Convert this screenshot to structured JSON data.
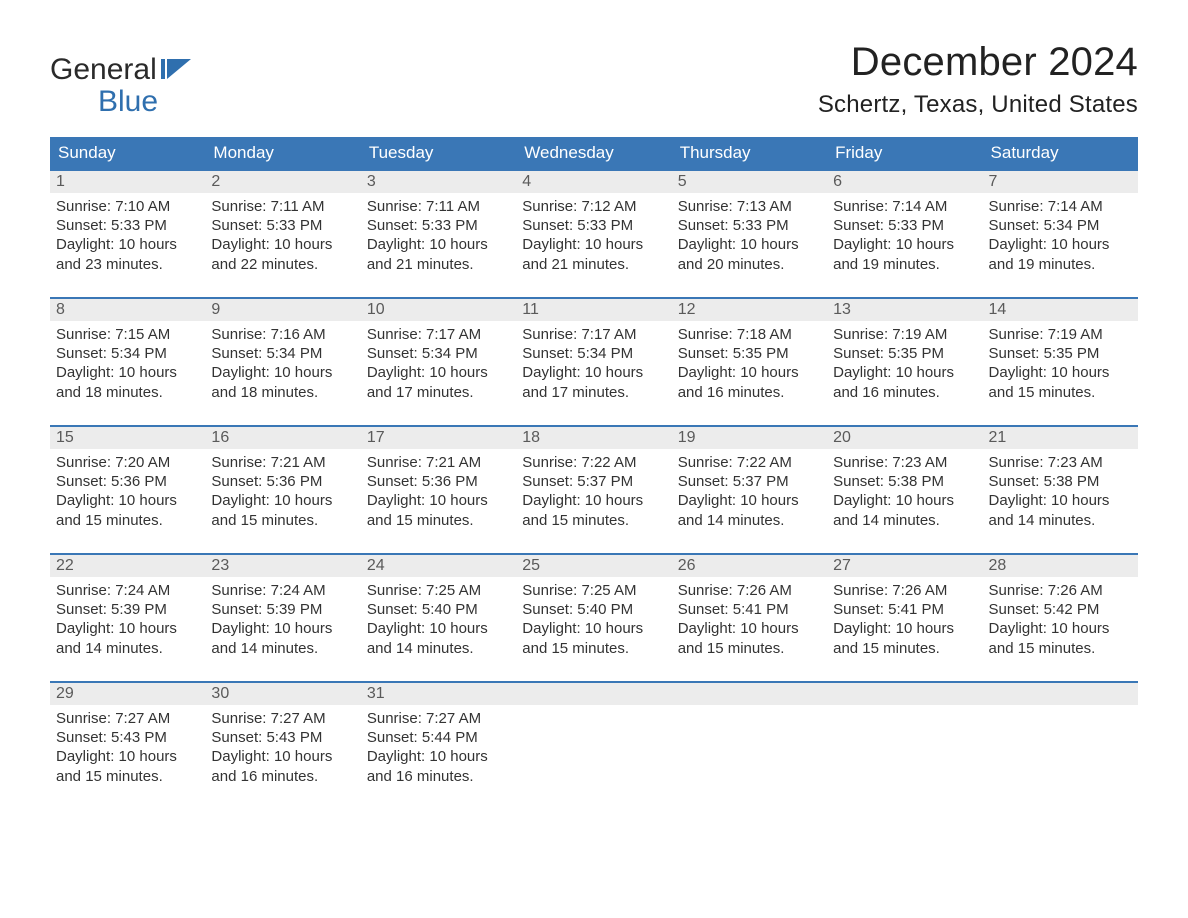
{
  "brand": {
    "word1": "General",
    "word2": "Blue",
    "flag_color": "#2f6fae"
  },
  "header": {
    "month_title": "December 2024",
    "location": "Schertz, Texas, United States"
  },
  "colors": {
    "header_bg": "#3a77b6",
    "header_text": "#ffffff",
    "daynum_bg": "#ececec",
    "row_border": "#3a77b6",
    "body_text": "#333333",
    "page_bg": "#ffffff"
  },
  "typography": {
    "month_title_fontsize": 40,
    "location_fontsize": 24,
    "dayheader_fontsize": 17,
    "daynum_fontsize": 16,
    "body_fontsize": 15
  },
  "columns": [
    "Sunday",
    "Monday",
    "Tuesday",
    "Wednesday",
    "Thursday",
    "Friday",
    "Saturday"
  ],
  "weeks": [
    [
      {
        "day": "1",
        "sunrise": "Sunrise: 7:10 AM",
        "sunset": "Sunset: 5:33 PM",
        "daylight1": "Daylight: 10 hours",
        "daylight2": "and 23 minutes."
      },
      {
        "day": "2",
        "sunrise": "Sunrise: 7:11 AM",
        "sunset": "Sunset: 5:33 PM",
        "daylight1": "Daylight: 10 hours",
        "daylight2": "and 22 minutes."
      },
      {
        "day": "3",
        "sunrise": "Sunrise: 7:11 AM",
        "sunset": "Sunset: 5:33 PM",
        "daylight1": "Daylight: 10 hours",
        "daylight2": "and 21 minutes."
      },
      {
        "day": "4",
        "sunrise": "Sunrise: 7:12 AM",
        "sunset": "Sunset: 5:33 PM",
        "daylight1": "Daylight: 10 hours",
        "daylight2": "and 21 minutes."
      },
      {
        "day": "5",
        "sunrise": "Sunrise: 7:13 AM",
        "sunset": "Sunset: 5:33 PM",
        "daylight1": "Daylight: 10 hours",
        "daylight2": "and 20 minutes."
      },
      {
        "day": "6",
        "sunrise": "Sunrise: 7:14 AM",
        "sunset": "Sunset: 5:33 PM",
        "daylight1": "Daylight: 10 hours",
        "daylight2": "and 19 minutes."
      },
      {
        "day": "7",
        "sunrise": "Sunrise: 7:14 AM",
        "sunset": "Sunset: 5:34 PM",
        "daylight1": "Daylight: 10 hours",
        "daylight2": "and 19 minutes."
      }
    ],
    [
      {
        "day": "8",
        "sunrise": "Sunrise: 7:15 AM",
        "sunset": "Sunset: 5:34 PM",
        "daylight1": "Daylight: 10 hours",
        "daylight2": "and 18 minutes."
      },
      {
        "day": "9",
        "sunrise": "Sunrise: 7:16 AM",
        "sunset": "Sunset: 5:34 PM",
        "daylight1": "Daylight: 10 hours",
        "daylight2": "and 18 minutes."
      },
      {
        "day": "10",
        "sunrise": "Sunrise: 7:17 AM",
        "sunset": "Sunset: 5:34 PM",
        "daylight1": "Daylight: 10 hours",
        "daylight2": "and 17 minutes."
      },
      {
        "day": "11",
        "sunrise": "Sunrise: 7:17 AM",
        "sunset": "Sunset: 5:34 PM",
        "daylight1": "Daylight: 10 hours",
        "daylight2": "and 17 minutes."
      },
      {
        "day": "12",
        "sunrise": "Sunrise: 7:18 AM",
        "sunset": "Sunset: 5:35 PM",
        "daylight1": "Daylight: 10 hours",
        "daylight2": "and 16 minutes."
      },
      {
        "day": "13",
        "sunrise": "Sunrise: 7:19 AM",
        "sunset": "Sunset: 5:35 PM",
        "daylight1": "Daylight: 10 hours",
        "daylight2": "and 16 minutes."
      },
      {
        "day": "14",
        "sunrise": "Sunrise: 7:19 AM",
        "sunset": "Sunset: 5:35 PM",
        "daylight1": "Daylight: 10 hours",
        "daylight2": "and 15 minutes."
      }
    ],
    [
      {
        "day": "15",
        "sunrise": "Sunrise: 7:20 AM",
        "sunset": "Sunset: 5:36 PM",
        "daylight1": "Daylight: 10 hours",
        "daylight2": "and 15 minutes."
      },
      {
        "day": "16",
        "sunrise": "Sunrise: 7:21 AM",
        "sunset": "Sunset: 5:36 PM",
        "daylight1": "Daylight: 10 hours",
        "daylight2": "and 15 minutes."
      },
      {
        "day": "17",
        "sunrise": "Sunrise: 7:21 AM",
        "sunset": "Sunset: 5:36 PM",
        "daylight1": "Daylight: 10 hours",
        "daylight2": "and 15 minutes."
      },
      {
        "day": "18",
        "sunrise": "Sunrise: 7:22 AM",
        "sunset": "Sunset: 5:37 PM",
        "daylight1": "Daylight: 10 hours",
        "daylight2": "and 15 minutes."
      },
      {
        "day": "19",
        "sunrise": "Sunrise: 7:22 AM",
        "sunset": "Sunset: 5:37 PM",
        "daylight1": "Daylight: 10 hours",
        "daylight2": "and 14 minutes."
      },
      {
        "day": "20",
        "sunrise": "Sunrise: 7:23 AM",
        "sunset": "Sunset: 5:38 PM",
        "daylight1": "Daylight: 10 hours",
        "daylight2": "and 14 minutes."
      },
      {
        "day": "21",
        "sunrise": "Sunrise: 7:23 AM",
        "sunset": "Sunset: 5:38 PM",
        "daylight1": "Daylight: 10 hours",
        "daylight2": "and 14 minutes."
      }
    ],
    [
      {
        "day": "22",
        "sunrise": "Sunrise: 7:24 AM",
        "sunset": "Sunset: 5:39 PM",
        "daylight1": "Daylight: 10 hours",
        "daylight2": "and 14 minutes."
      },
      {
        "day": "23",
        "sunrise": "Sunrise: 7:24 AM",
        "sunset": "Sunset: 5:39 PM",
        "daylight1": "Daylight: 10 hours",
        "daylight2": "and 14 minutes."
      },
      {
        "day": "24",
        "sunrise": "Sunrise: 7:25 AM",
        "sunset": "Sunset: 5:40 PM",
        "daylight1": "Daylight: 10 hours",
        "daylight2": "and 14 minutes."
      },
      {
        "day": "25",
        "sunrise": "Sunrise: 7:25 AM",
        "sunset": "Sunset: 5:40 PM",
        "daylight1": "Daylight: 10 hours",
        "daylight2": "and 15 minutes."
      },
      {
        "day": "26",
        "sunrise": "Sunrise: 7:26 AM",
        "sunset": "Sunset: 5:41 PM",
        "daylight1": "Daylight: 10 hours",
        "daylight2": "and 15 minutes."
      },
      {
        "day": "27",
        "sunrise": "Sunrise: 7:26 AM",
        "sunset": "Sunset: 5:41 PM",
        "daylight1": "Daylight: 10 hours",
        "daylight2": "and 15 minutes."
      },
      {
        "day": "28",
        "sunrise": "Sunrise: 7:26 AM",
        "sunset": "Sunset: 5:42 PM",
        "daylight1": "Daylight: 10 hours",
        "daylight2": "and 15 minutes."
      }
    ],
    [
      {
        "day": "29",
        "sunrise": "Sunrise: 7:27 AM",
        "sunset": "Sunset: 5:43 PM",
        "daylight1": "Daylight: 10 hours",
        "daylight2": "and 15 minutes."
      },
      {
        "day": "30",
        "sunrise": "Sunrise: 7:27 AM",
        "sunset": "Sunset: 5:43 PM",
        "daylight1": "Daylight: 10 hours",
        "daylight2": "and 16 minutes."
      },
      {
        "day": "31",
        "sunrise": "Sunrise: 7:27 AM",
        "sunset": "Sunset: 5:44 PM",
        "daylight1": "Daylight: 10 hours",
        "daylight2": "and 16 minutes."
      },
      null,
      null,
      null,
      null
    ]
  ]
}
